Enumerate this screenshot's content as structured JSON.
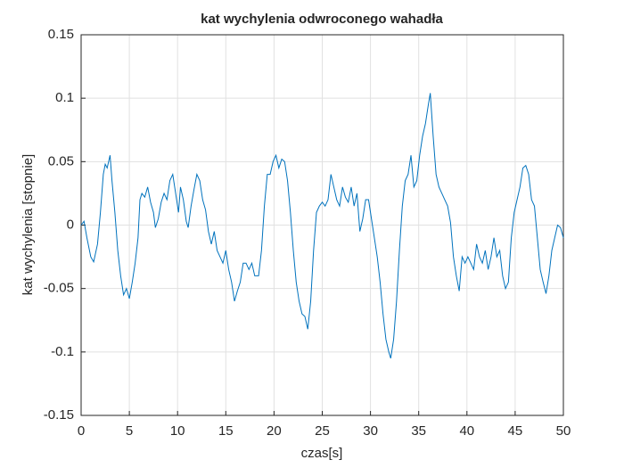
{
  "chart_data": {
    "type": "line",
    "title": "kat wychylenia odwroconego wahadła",
    "xlabel": "czas[s]",
    "ylabel": "kat wychylenia [stopnie]",
    "xlim": [
      0,
      50
    ],
    "ylim": [
      -0.15,
      0.15
    ],
    "xticks": [
      0,
      5,
      10,
      15,
      20,
      25,
      30,
      35,
      40,
      45,
      50
    ],
    "yticks": [
      -0.15,
      -0.1,
      -0.05,
      0,
      0.05,
      0.1,
      0.15
    ],
    "grid": true,
    "series": [
      {
        "name": "kat",
        "color": "#0072bd",
        "x": [
          0,
          0.3,
          0.6,
          1,
          1.3,
          1.7,
          2,
          2.3,
          2.5,
          2.7,
          3,
          3.2,
          3.5,
          3.8,
          4.1,
          4.4,
          4.7,
          5,
          5.3,
          5.6,
          5.9,
          6.1,
          6.3,
          6.6,
          6.9,
          7.2,
          7.5,
          7.7,
          8,
          8.3,
          8.6,
          8.9,
          9.2,
          9.5,
          9.8,
          10.1,
          10.3,
          10.6,
          10.9,
          11.1,
          11.4,
          11.7,
          12,
          12.3,
          12.6,
          12.9,
          13.2,
          13.5,
          13.8,
          14.1,
          14.4,
          14.7,
          15,
          15.3,
          15.6,
          15.9,
          16.2,
          16.5,
          16.8,
          17.1,
          17.4,
          17.7,
          18,
          18.4,
          18.7,
          19,
          19.3,
          19.6,
          19.9,
          20.2,
          20.5,
          20.8,
          21.1,
          21.4,
          21.7,
          22,
          22.3,
          22.6,
          22.9,
          23.2,
          23.5,
          23.8,
          24.1,
          24.4,
          24.7,
          25,
          25.3,
          25.6,
          25.9,
          26.2,
          26.5,
          26.8,
          27.1,
          27.4,
          27.7,
          28,
          28.3,
          28.6,
          28.9,
          29.2,
          29.5,
          29.8,
          30.1,
          30.4,
          30.7,
          31,
          31.3,
          31.6,
          31.9,
          32.1,
          32.4,
          32.7,
          33,
          33.3,
          33.6,
          33.9,
          34.2,
          34.5,
          34.8,
          35.1,
          35.4,
          35.7,
          36,
          36.2,
          36.5,
          36.8,
          37.1,
          37.4,
          37.7,
          38,
          38.3,
          38.6,
          38.9,
          39.2,
          39.5,
          39.8,
          40.1,
          40.4,
          40.7,
          41,
          41.3,
          41.6,
          41.9,
          42.2,
          42.5,
          42.8,
          43.1,
          43.4,
          43.7,
          44,
          44.3,
          44.6,
          44.9,
          45.2,
          45.5,
          45.8,
          46.1,
          46.4,
          46.7,
          47,
          47.3,
          47.6,
          47.9,
          48.2,
          48.5,
          48.8,
          49.1,
          49.4,
          49.7,
          50
        ],
        "values": [
          0,
          0.003,
          -0.01,
          -0.025,
          -0.029,
          -0.015,
          0.01,
          0.04,
          0.048,
          0.045,
          0.055,
          0.035,
          0.01,
          -0.02,
          -0.04,
          -0.055,
          -0.05,
          -0.058,
          -0.045,
          -0.03,
          -0.01,
          0.02,
          0.025,
          0.022,
          0.03,
          0.018,
          0.01,
          -0.002,
          0.005,
          0.018,
          0.025,
          0.02,
          0.035,
          0.04,
          0.025,
          0.01,
          0.03,
          0.02,
          0.003,
          -0.002,
          0.015,
          0.028,
          0.04,
          0.035,
          0.02,
          0.012,
          -0.005,
          -0.015,
          -0.005,
          -0.02,
          -0.025,
          -0.03,
          -0.02,
          -0.035,
          -0.045,
          -0.06,
          -0.052,
          -0.045,
          -0.03,
          -0.03,
          -0.035,
          -0.03,
          -0.04,
          -0.04,
          -0.02,
          0.015,
          0.04,
          0.04,
          0.05,
          0.055,
          0.045,
          0.052,
          0.05,
          0.035,
          0.01,
          -0.02,
          -0.045,
          -0.06,
          -0.07,
          -0.072,
          -0.082,
          -0.06,
          -0.02,
          0.01,
          0.015,
          0.018,
          0.015,
          0.02,
          0.04,
          0.03,
          0.02,
          0.015,
          0.03,
          0.022,
          0.018,
          0.03,
          0.015,
          0.025,
          -0.005,
          0.005,
          0.02,
          0.02,
          0.005,
          -0.01,
          -0.025,
          -0.045,
          -0.07,
          -0.09,
          -0.1,
          -0.105,
          -0.09,
          -0.06,
          -0.02,
          0.015,
          0.035,
          0.04,
          0.055,
          0.03,
          0.035,
          0.055,
          0.07,
          0.08,
          0.095,
          0.104,
          0.07,
          0.04,
          0.03,
          0.025,
          0.02,
          0.015,
          0.002,
          -0.025,
          -0.04,
          -0.052,
          -0.025,
          -0.03,
          -0.025,
          -0.03,
          -0.035,
          -0.015,
          -0.025,
          -0.03,
          -0.02,
          -0.035,
          -0.025,
          -0.01,
          -0.025,
          -0.02,
          -0.04,
          -0.05,
          -0.045,
          -0.01,
          0.01,
          0.02,
          0.03,
          0.045,
          0.047,
          0.04,
          0.02,
          0.015,
          -0.01,
          -0.035,
          -0.045,
          -0.054,
          -0.04,
          -0.02,
          -0.01,
          0,
          -0.002,
          -0.01
        ]
      }
    ]
  }
}
